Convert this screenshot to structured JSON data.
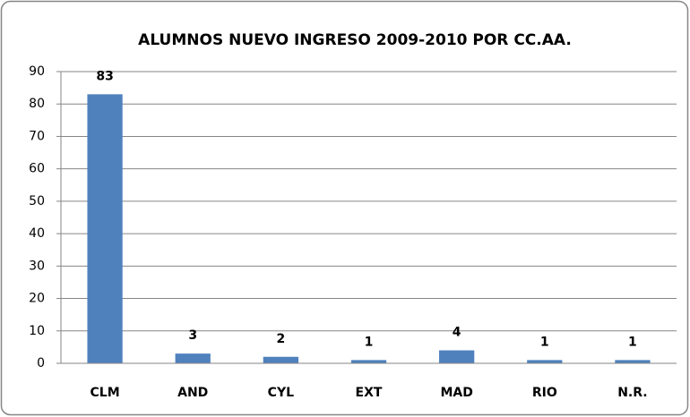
{
  "chart_data": {
    "type": "bar",
    "title": "ALUMNOS NUEVO INGRESO 2009-2010 POR CC.AA.",
    "categories": [
      "CLM",
      "AND",
      "CYL",
      "EXT",
      "MAD",
      "RIO",
      "N.R."
    ],
    "values": [
      83,
      3,
      2,
      1,
      4,
      1,
      1
    ],
    "color": "#4f81bd",
    "ylim": [
      0,
      90
    ],
    "yticks": [
      0,
      10,
      20,
      30,
      40,
      50,
      60,
      70,
      80,
      90
    ],
    "grid": true
  }
}
